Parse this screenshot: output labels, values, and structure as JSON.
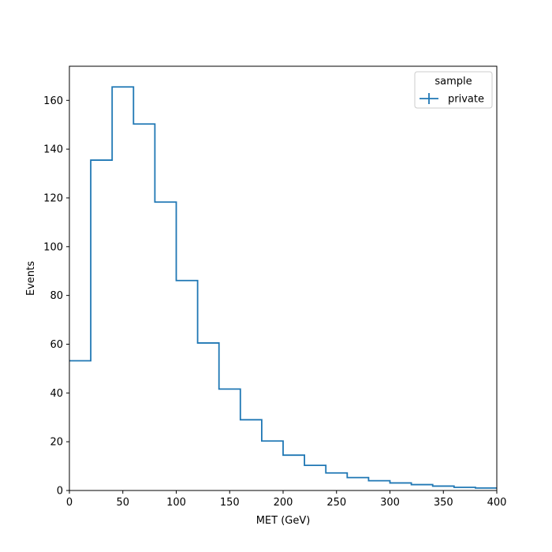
{
  "chart_data": {
    "type": "histogram-step",
    "xlabel": "MET (GeV)",
    "ylabel": "Events",
    "xlim": [
      0,
      400
    ],
    "ylim": [
      0,
      174
    ],
    "xticks": [
      0,
      50,
      100,
      150,
      200,
      250,
      300,
      350,
      400
    ],
    "yticks": [
      0,
      20,
      40,
      60,
      80,
      100,
      120,
      140,
      160
    ],
    "grid": false,
    "legend": {
      "title": "sample",
      "placement": "upper-right",
      "entries": [
        "private"
      ]
    },
    "bin_edges": [
      0,
      20,
      40,
      60,
      80,
      100,
      120,
      140,
      160,
      180,
      200,
      220,
      240,
      260,
      280,
      300,
      320,
      340,
      360,
      380,
      400
    ],
    "series": [
      {
        "name": "private",
        "color": "#1f77b4",
        "values": [
          53.2,
          135.5,
          165.5,
          150.3,
          118.3,
          86.1,
          60.5,
          41.6,
          29.0,
          20.3,
          14.5,
          10.3,
          7.2,
          5.3,
          4.0,
          3.1,
          2.4,
          1.8,
          1.3,
          1.0
        ]
      }
    ]
  }
}
